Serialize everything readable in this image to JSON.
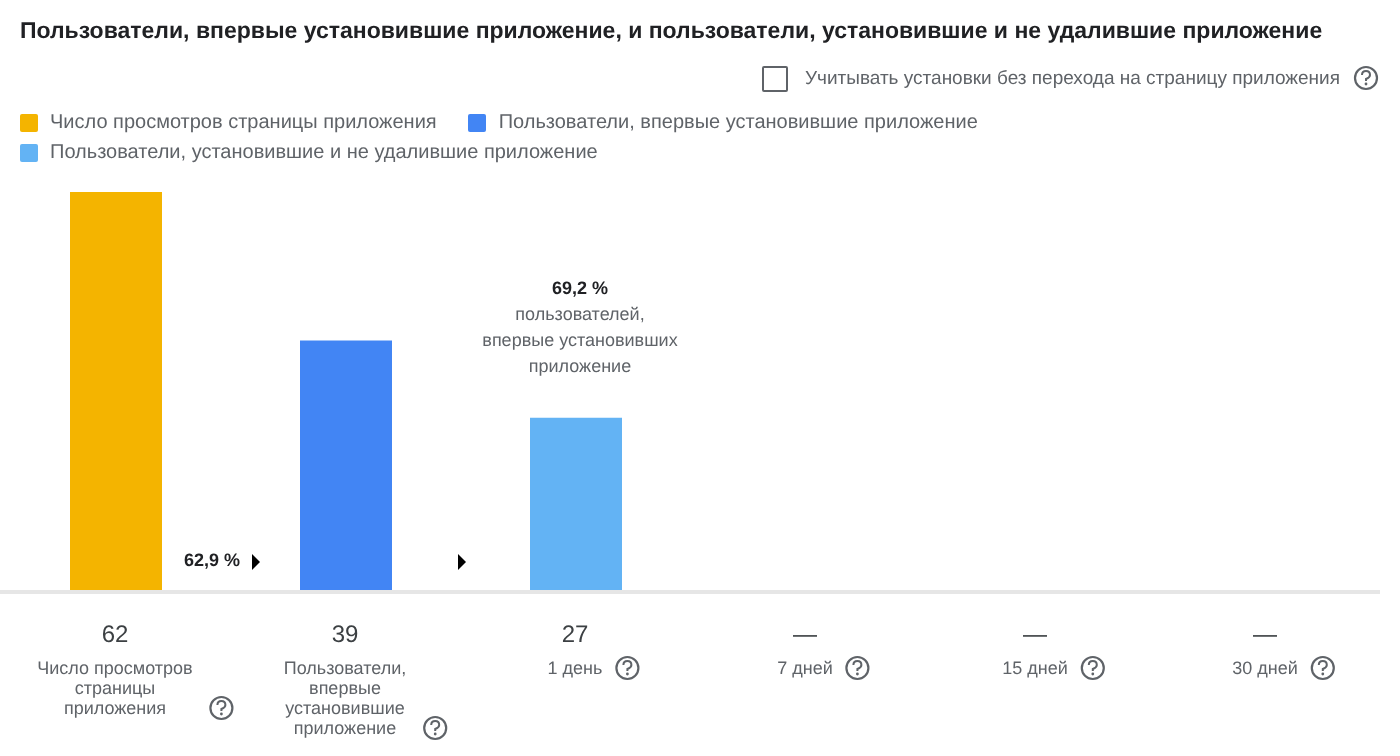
{
  "chart_data": {
    "type": "bar",
    "title": "Пользователи, впервые установившие приложение, и пользователи, установившие и не удалившие приложение",
    "categories": [
      "Число просмотров страницы приложения",
      "Пользователи, впервые установившие приложение",
      "1 день",
      "7 дней",
      "15 дней",
      "30 дней"
    ],
    "stacked": true,
    "series": [
      {
        "name": "Число просмотров страницы приложения",
        "color": "#f4b400",
        "values": [
          62,
          null,
          null,
          null,
          null,
          null
        ],
        "value_labels": [
          "62",
          null,
          null,
          null,
          null,
          null
        ]
      },
      {
        "name": "Пользователи, впервые установившие приложение",
        "color": "#4285f4",
        "values": [
          null,
          39,
          null,
          null,
          null,
          null
        ],
        "value_labels": [
          null,
          "39",
          null,
          null,
          null,
          null
        ]
      },
      {
        "name": "Пользователи, установившие и не удалившие приложение",
        "color": "#63b3f4",
        "values": [
          null,
          null,
          27,
          null,
          null,
          null
        ],
        "value_labels": [
          null,
          null,
          "27",
          "—",
          "—",
          "—"
        ]
      }
    ],
    "ylim": [
      0,
      62
    ],
    "tick_labels": "x",
    "legend": "top left",
    "annotations": [
      "Учитывать установки без перехода на страницу приложения",
      "62,9 %",
      "69,2 %",
      "пользователей, впервые установивших приложение"
    ]
  }
}
